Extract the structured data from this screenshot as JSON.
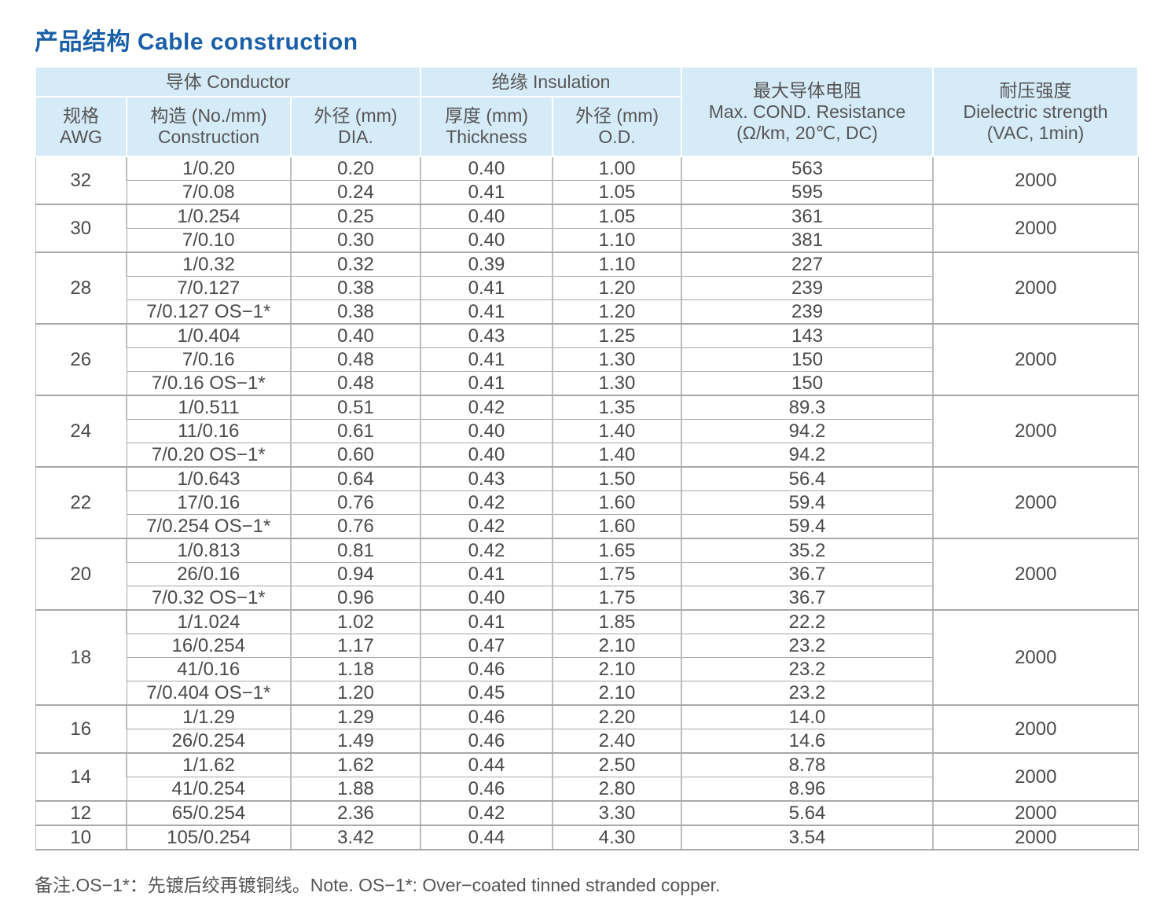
{
  "title": "产品结构  Cable construction",
  "header": {
    "conductor": "导体 Conductor",
    "insulation": "绝缘 Insulation",
    "resistance_l1": "最大导体电阻",
    "resistance_l2": "Max. COND. Resistance",
    "resistance_l3": "(Ω/km, 20℃, DC)",
    "dielectric_l1": "耐压强度",
    "dielectric_l2": "Dielectric strength",
    "dielectric_l3": "(VAC, 1min)",
    "awg_l1": "规格",
    "awg_l2": "AWG",
    "construction_l1": "构造 (No./mm)",
    "construction_l2": "Construction",
    "dia_l1": "外径 (mm)",
    "dia_l2": "DIA.",
    "thickness_l1": "厚度 (mm)",
    "thickness_l2": "Thickness",
    "od_l1": "外径 (mm)",
    "od_l2": "O.D."
  },
  "groups": [
    {
      "awg": "32",
      "dielectric": "2000",
      "rows": [
        {
          "construction": "1/0.20",
          "dia": "0.20",
          "thickness": "0.40",
          "od": "1.00",
          "resistance": "563"
        },
        {
          "construction": "7/0.08",
          "dia": "0.24",
          "thickness": "0.41",
          "od": "1.05",
          "resistance": "595"
        }
      ]
    },
    {
      "awg": "30",
      "dielectric": "2000",
      "rows": [
        {
          "construction": "1/0.254",
          "dia": "0.25",
          "thickness": "0.40",
          "od": "1.05",
          "resistance": "361"
        },
        {
          "construction": "7/0.10",
          "dia": "0.30",
          "thickness": "0.40",
          "od": "1.10",
          "resistance": "381"
        }
      ]
    },
    {
      "awg": "28",
      "dielectric": "2000",
      "rows": [
        {
          "construction": "1/0.32",
          "dia": "0.32",
          "thickness": "0.39",
          "od": "1.10",
          "resistance": "227"
        },
        {
          "construction": "7/0.127",
          "dia": "0.38",
          "thickness": "0.41",
          "od": "1.20",
          "resistance": "239"
        },
        {
          "construction": "7/0.127 OS−1*",
          "dia": "0.38",
          "thickness": "0.41",
          "od": "1.20",
          "resistance": "239"
        }
      ]
    },
    {
      "awg": "26",
      "dielectric": "2000",
      "rows": [
        {
          "construction": "1/0.404",
          "dia": "0.40",
          "thickness": "0.43",
          "od": "1.25",
          "resistance": "143"
        },
        {
          "construction": "7/0.16",
          "dia": "0.48",
          "thickness": "0.41",
          "od": "1.30",
          "resistance": "150"
        },
        {
          "construction": "7/0.16 OS−1*",
          "dia": "0.48",
          "thickness": "0.41",
          "od": "1.30",
          "resistance": "150"
        }
      ]
    },
    {
      "awg": "24",
      "dielectric": "2000",
      "rows": [
        {
          "construction": "1/0.511",
          "dia": "0.51",
          "thickness": "0.42",
          "od": "1.35",
          "resistance": "89.3"
        },
        {
          "construction": "11/0.16",
          "dia": "0.61",
          "thickness": "0.40",
          "od": "1.40",
          "resistance": "94.2"
        },
        {
          "construction": "7/0.20 OS−1*",
          "dia": "0.60",
          "thickness": "0.40",
          "od": "1.40",
          "resistance": "94.2"
        }
      ]
    },
    {
      "awg": "22",
      "dielectric": "2000",
      "rows": [
        {
          "construction": "1/0.643",
          "dia": "0.64",
          "thickness": "0.43",
          "od": "1.50",
          "resistance": "56.4"
        },
        {
          "construction": "17/0.16",
          "dia": "0.76",
          "thickness": "0.42",
          "od": "1.60",
          "resistance": "59.4"
        },
        {
          "construction": "7/0.254 OS−1*",
          "dia": "0.76",
          "thickness": "0.42",
          "od": "1.60",
          "resistance": "59.4"
        }
      ]
    },
    {
      "awg": "20",
      "dielectric": "2000",
      "rows": [
        {
          "construction": "1/0.813",
          "dia": "0.81",
          "thickness": "0.42",
          "od": "1.65",
          "resistance": "35.2"
        },
        {
          "construction": "26/0.16",
          "dia": "0.94",
          "thickness": "0.41",
          "od": "1.75",
          "resistance": "36.7"
        },
        {
          "construction": "7/0.32 OS−1*",
          "dia": "0.96",
          "thickness": "0.40",
          "od": "1.75",
          "resistance": "36.7"
        }
      ]
    },
    {
      "awg": "18",
      "dielectric": "2000",
      "rows": [
        {
          "construction": "1/1.024",
          "dia": "1.02",
          "thickness": "0.41",
          "od": "1.85",
          "resistance": "22.2"
        },
        {
          "construction": "16/0.254",
          "dia": "1.17",
          "thickness": "0.47",
          "od": "2.10",
          "resistance": "23.2"
        },
        {
          "construction": "41/0.16",
          "dia": "1.18",
          "thickness": "0.46",
          "od": "2.10",
          "resistance": "23.2"
        },
        {
          "construction": "7/0.404 OS−1*",
          "dia": "1.20",
          "thickness": "0.45",
          "od": "2.10",
          "resistance": "23.2"
        }
      ]
    },
    {
      "awg": "16",
      "dielectric": "2000",
      "rows": [
        {
          "construction": "1/1.29",
          "dia": "1.29",
          "thickness": "0.46",
          "od": "2.20",
          "resistance": "14.0"
        },
        {
          "construction": "26/0.254",
          "dia": "1.49",
          "thickness": "0.46",
          "od": "2.40",
          "resistance": "14.6"
        }
      ]
    },
    {
      "awg": "14",
      "dielectric": "2000",
      "rows": [
        {
          "construction": "1/1.62",
          "dia": "1.62",
          "thickness": "0.44",
          "od": "2.50",
          "resistance": "8.78"
        },
        {
          "construction": "41/0.254",
          "dia": "1.88",
          "thickness": "0.46",
          "od": "2.80",
          "resistance": "8.96"
        }
      ]
    },
    {
      "awg": "12",
      "dielectric": "2000",
      "rows": [
        {
          "construction": "65/0.254",
          "dia": "2.36",
          "thickness": "0.42",
          "od": "3.30",
          "resistance": "5.64"
        }
      ]
    },
    {
      "awg": "10",
      "dielectric": "2000",
      "rows": [
        {
          "construction": "105/0.254",
          "dia": "3.42",
          "thickness": "0.44",
          "od": "4.30",
          "resistance": "3.54"
        }
      ]
    }
  ],
  "note": "备注.OS−1*：先镀后绞再镀铜线。Note. OS−1*: Over−coated tinned stranded copper.",
  "colors": {
    "title": "#1a5fa8",
    "header_bg": "#d6ebf8",
    "rule": "#5b9bd5"
  }
}
